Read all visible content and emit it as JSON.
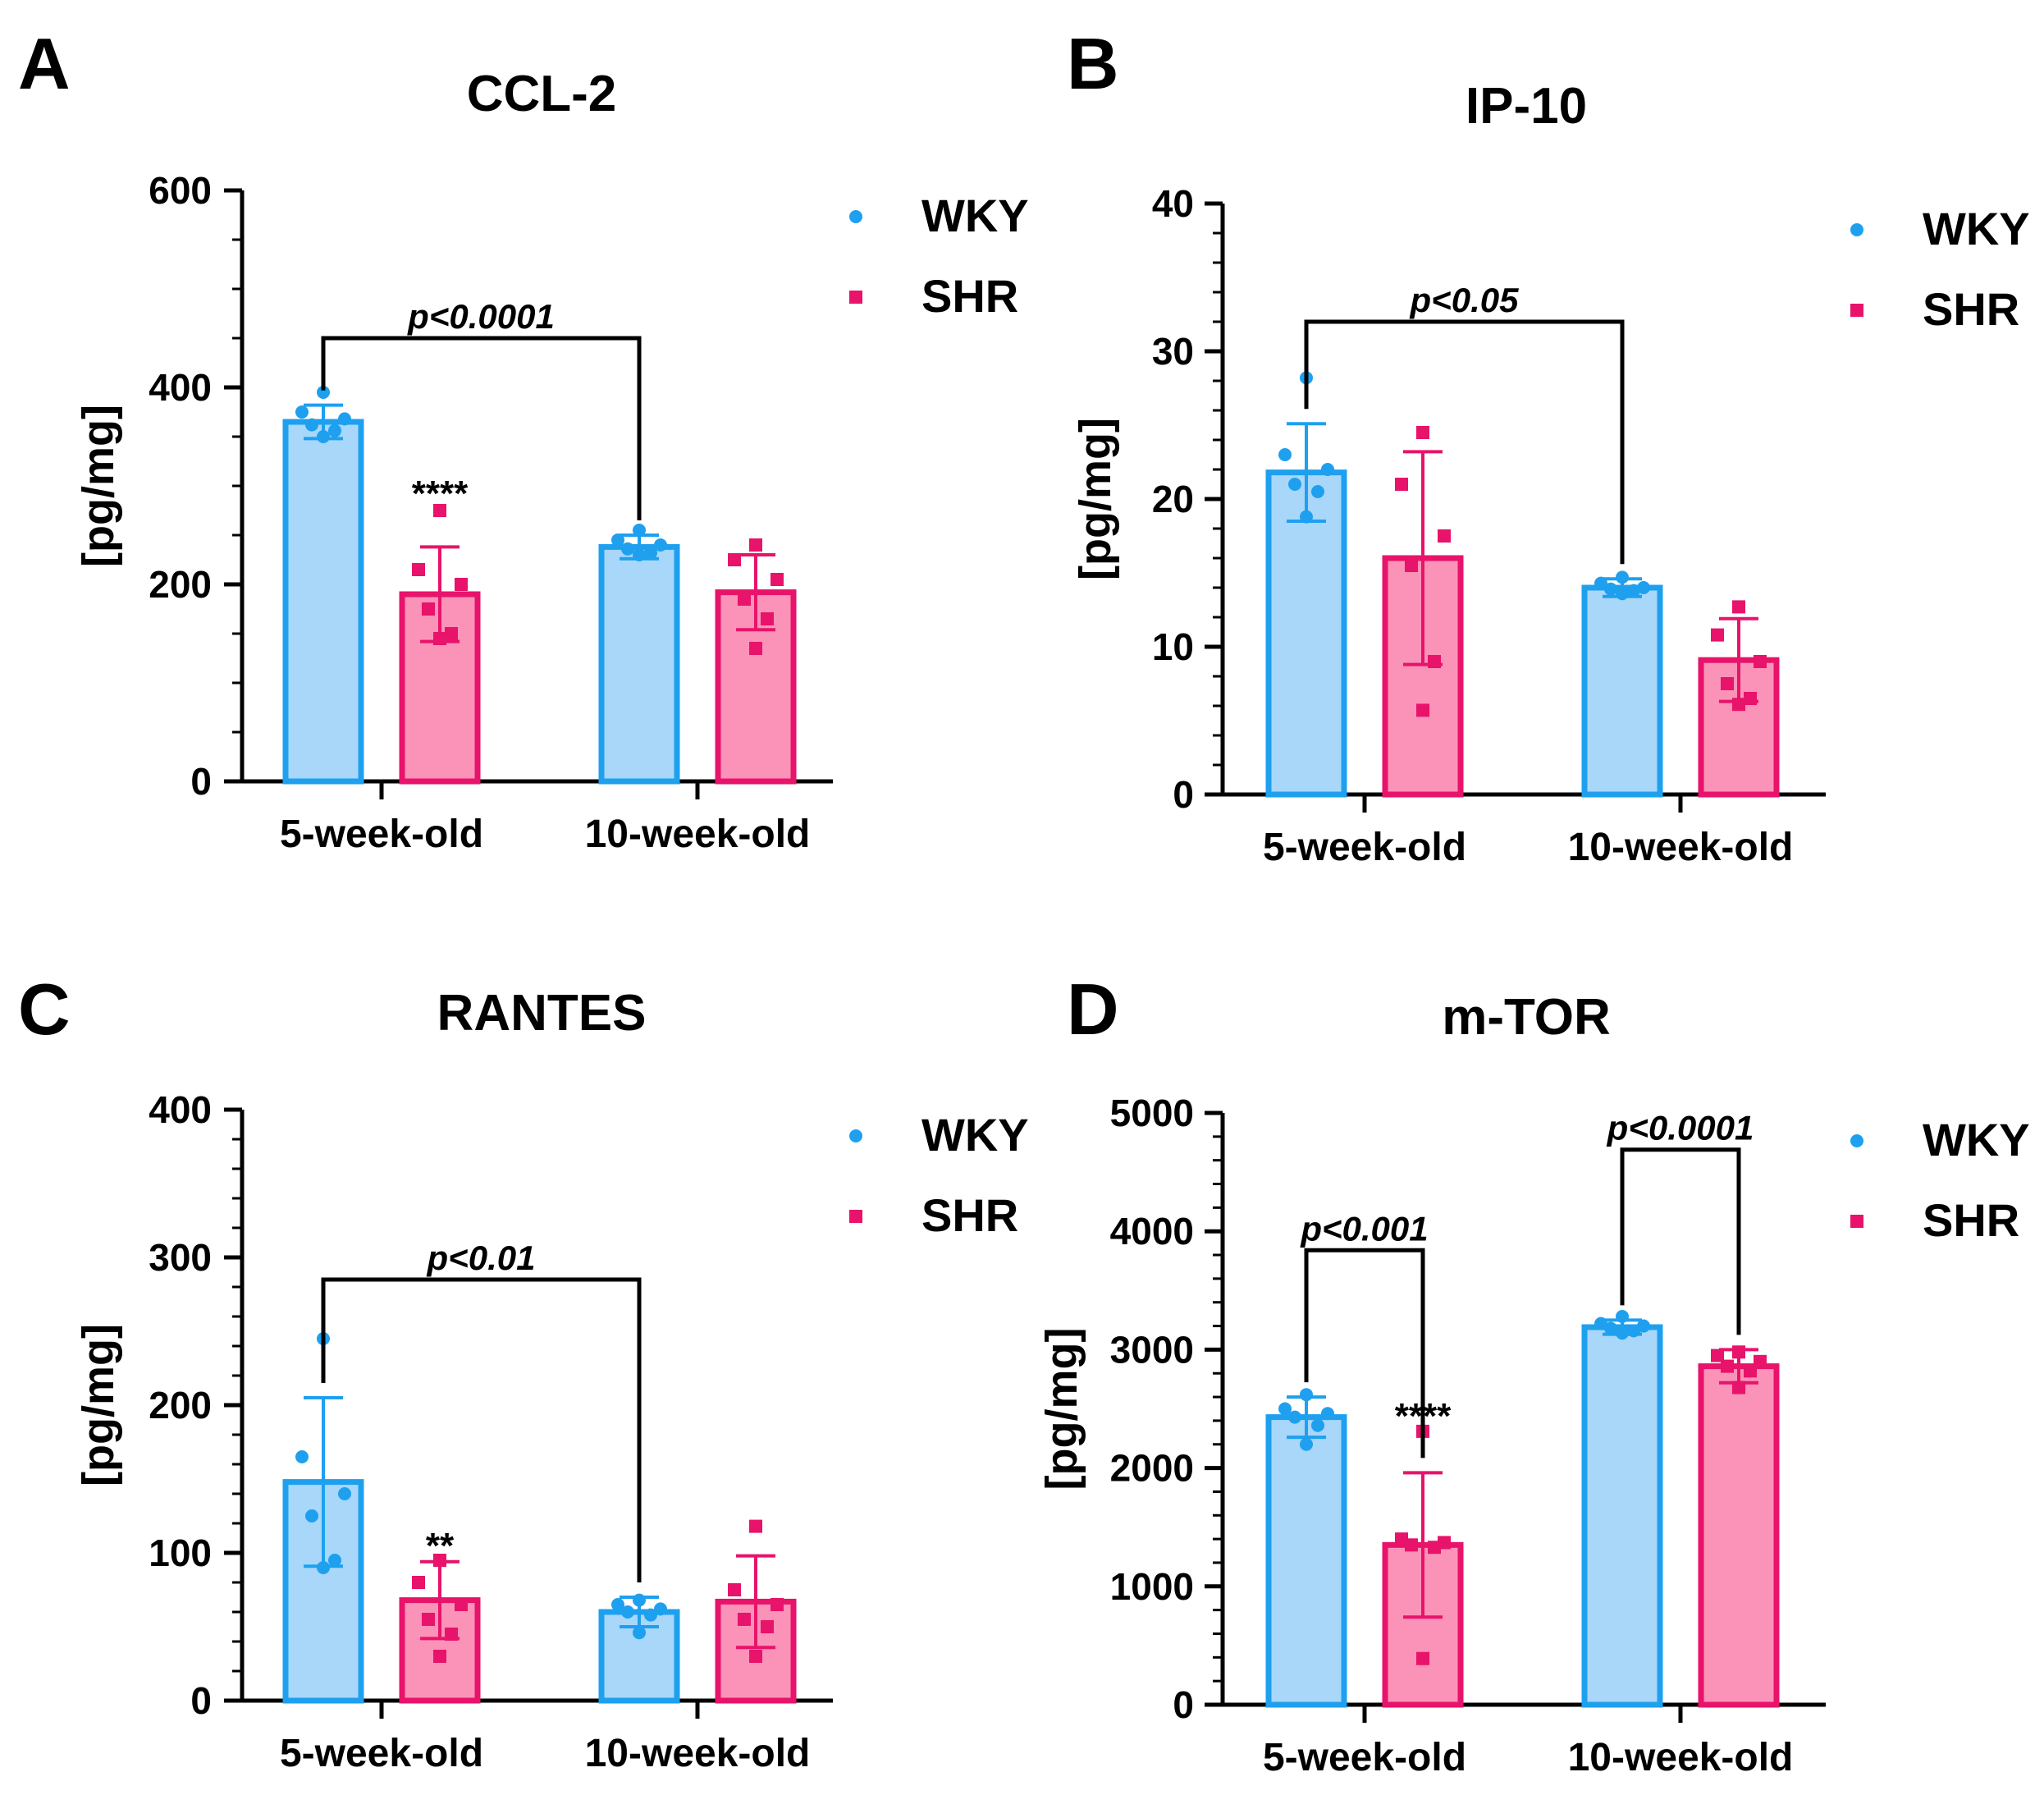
{
  "legend": {
    "series": [
      "WKY",
      "SHR"
    ]
  },
  "colors": {
    "WKY_fill": "#a8d7fa",
    "WKY_stroke": "#1ea0ef",
    "SHR_fill": "#fb93b8",
    "SHR_stroke": "#e8136a",
    "axis": "#000000"
  },
  "chart_data": [
    {
      "panel": "A",
      "type": "bar",
      "title": "CCL-2",
      "ylabel": "[pg/mg]",
      "xlabel": "",
      "categories": [
        "5-week-old",
        "10-week-old"
      ],
      "ylim": [
        0,
        600
      ],
      "yticks": [
        0,
        200,
        400,
        600
      ],
      "minor_step": 50,
      "series": [
        {
          "name": "WKY",
          "values": [
            365,
            238
          ],
          "sd": [
            17,
            12
          ],
          "points": [
            [
              395,
              375,
              368,
              362,
              356,
              350
            ],
            [
              255,
              245,
              240,
              236,
              232,
              230
            ]
          ]
        },
        {
          "name": "SHR",
          "values": [
            190,
            192
          ],
          "sd": [
            48,
            38
          ],
          "points": [
            [
              275,
              215,
              200,
              175,
              150,
              145
            ],
            [
              240,
              225,
              205,
              185,
              165,
              135
            ]
          ]
        }
      ],
      "comparisons": [
        {
          "from": [
            0,
            0
          ],
          "to": [
            1,
            0
          ],
          "label": "p<0.0001",
          "level": 450
        }
      ],
      "annotations": [
        {
          "series": 1,
          "category": 0,
          "text": "****",
          "level": 285
        }
      ]
    },
    {
      "panel": "B",
      "type": "bar",
      "title": "IP-10",
      "ylabel": "[pg/mg]",
      "xlabel": "",
      "categories": [
        "5-week-old",
        "10-week-old"
      ],
      "ylim": [
        0,
        40
      ],
      "yticks": [
        0,
        10,
        20,
        30,
        40
      ],
      "minor_step": 2,
      "series": [
        {
          "name": "WKY",
          "values": [
            21.8,
            14.0
          ],
          "sd": [
            3.3,
            0.6
          ],
          "points": [
            [
              28.2,
              23.0,
              22.0,
              21.0,
              20.5,
              18.8
            ],
            [
              14.7,
              14.3,
              14.0,
              13.9,
              13.8,
              13.6
            ]
          ]
        },
        {
          "name": "SHR",
          "values": [
            16.0,
            9.1
          ],
          "sd": [
            7.2,
            2.8
          ],
          "points": [
            [
              24.5,
              21.0,
              17.5,
              15.5,
              9.0,
              5.7
            ],
            [
              12.7,
              10.8,
              9.0,
              7.5,
              6.5,
              6.1
            ]
          ]
        }
      ],
      "comparisons": [
        {
          "from": [
            0,
            0
          ],
          "to": [
            1,
            0
          ],
          "label": "p<0.05",
          "level": 32
        }
      ],
      "annotations": []
    },
    {
      "panel": "C",
      "type": "bar",
      "title": "RANTES",
      "ylabel": "[pg/mg]",
      "xlabel": "",
      "categories": [
        "5-week-old",
        "10-week-old"
      ],
      "ylim": [
        0,
        400
      ],
      "yticks": [
        0,
        100,
        200,
        300,
        400
      ],
      "minor_step": 20,
      "series": [
        {
          "name": "WKY",
          "values": [
            148,
            60
          ],
          "sd": [
            57,
            10
          ],
          "points": [
            [
              245,
              165,
              140,
              125,
              95,
              90
            ],
            [
              68,
              65,
              62,
              60,
              58,
              46
            ]
          ]
        },
        {
          "name": "SHR",
          "values": [
            68,
            67
          ],
          "sd": [
            26,
            31
          ],
          "points": [
            [
              95,
              80,
              65,
              55,
              45,
              30
            ],
            [
              118,
              75,
              65,
              55,
              50,
              30
            ]
          ]
        }
      ],
      "comparisons": [
        {
          "from": [
            0,
            0
          ],
          "to": [
            1,
            0
          ],
          "label": "p<0.01",
          "level": 285
        }
      ],
      "annotations": [
        {
          "series": 1,
          "category": 0,
          "text": "**",
          "level": 100
        }
      ]
    },
    {
      "panel": "D",
      "type": "bar",
      "title": "m-TOR",
      "ylabel": "[pg/mg]",
      "xlabel": "",
      "categories": [
        "5-week-old",
        "10-week-old"
      ],
      "ylim": [
        0,
        5000
      ],
      "yticks": [
        0,
        1000,
        2000,
        3000,
        4000,
        5000
      ],
      "minor_step": 200,
      "series": [
        {
          "name": "WKY",
          "values": [
            2430,
            3190
          ],
          "sd": [
            170,
            60
          ],
          "points": [
            [
              2620,
              2500,
              2460,
              2430,
              2360,
              2200
            ],
            [
              3280,
              3220,
              3200,
              3180,
              3160,
              3140
            ]
          ]
        },
        {
          "name": "SHR",
          "values": [
            1350,
            2860
          ],
          "sd": [
            610,
            140
          ],
          "points": [
            [
              2310,
              1400,
              1370,
              1350,
              1330,
              390
            ],
            [
              2980,
              2950,
              2900,
              2860,
              2820,
              2680
            ]
          ]
        }
      ],
      "comparisons": [
        {
          "from": [
            0,
            0
          ],
          "to": [
            0,
            1
          ],
          "label": "p<0.001",
          "level": 3840
        },
        {
          "from": [
            1,
            0
          ],
          "to": [
            1,
            1
          ],
          "label": "p<0.0001",
          "level": 4690
        }
      ],
      "annotations": [
        {
          "series": 1,
          "category": 0,
          "text": "****",
          "level": 2380
        }
      ]
    }
  ]
}
